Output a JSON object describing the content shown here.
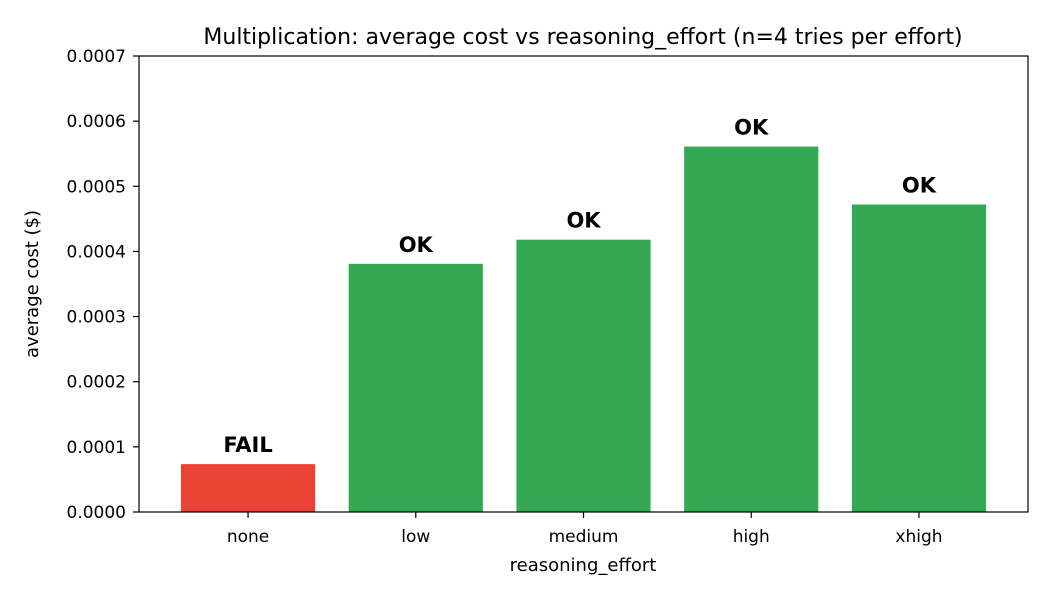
{
  "chart_data": {
    "type": "bar",
    "title": "Multiplication: average cost vs reasoning_effort (n=4 tries per effort)",
    "xlabel": "reasoning_effort",
    "ylabel": "average cost ($)",
    "categories": [
      "none",
      "low",
      "medium",
      "high",
      "xhigh"
    ],
    "values": [
      7.35e-05,
      0.000381,
      0.000418,
      0.000561,
      0.000472
    ],
    "bar_labels": [
      "FAIL",
      "OK",
      "OK",
      "OK",
      "OK"
    ],
    "colors": [
      "#ea4335",
      "#34a853",
      "#34a853",
      "#34a853",
      "#34a853"
    ],
    "ylim": [
      0,
      0.0007
    ],
    "yticks": [
      "0.0000",
      "0.0001",
      "0.0002",
      "0.0003",
      "0.0004",
      "0.0005",
      "0.0006",
      "0.0007"
    ],
    "grid": false,
    "legend": "none"
  }
}
